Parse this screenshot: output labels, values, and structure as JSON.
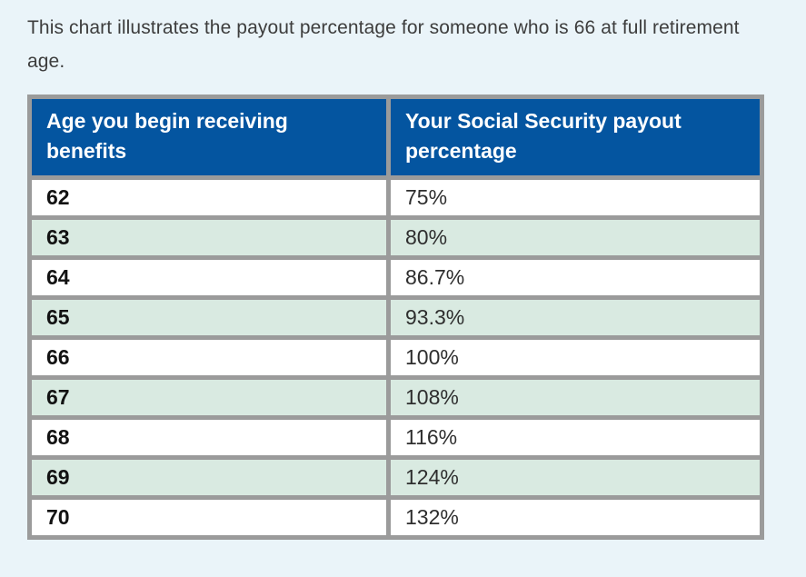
{
  "intro": "This chart illustrates the payout percentage for someone who is 66 at full retirement age.",
  "table": {
    "columns": [
      "Age you begin receiving benefits",
      "Your Social Security payout percentage"
    ],
    "rows": [
      {
        "age": "62",
        "payout": "75%"
      },
      {
        "age": "63",
        "payout": "80%"
      },
      {
        "age": "64",
        "payout": "86.7%"
      },
      {
        "age": "65",
        "payout": "93.3%"
      },
      {
        "age": "66",
        "payout": "100%"
      },
      {
        "age": "67",
        "payout": "108%"
      },
      {
        "age": "68",
        "payout": "116%"
      },
      {
        "age": "69",
        "payout": "124%"
      },
      {
        "age": "70",
        "payout": "132%"
      }
    ]
  },
  "colors": {
    "page_bg": "#eaf4f9",
    "header_bg": "#0455a0",
    "header_text": "#ffffff",
    "border": "#9b9b9b",
    "row_alt_bg": "#d9eae1",
    "row_bg": "#ffffff",
    "text": "#3d3d3d"
  },
  "chart_data": {
    "type": "table",
    "title": "This chart illustrates the payout percentage for someone who is 66 at full retirement age.",
    "columns": [
      "Age you begin receiving benefits",
      "Your Social Security payout percentage"
    ],
    "categories": [
      62,
      63,
      64,
      65,
      66,
      67,
      68,
      69,
      70
    ],
    "values": [
      75,
      80,
      86.7,
      93.3,
      100,
      108,
      116,
      124,
      132
    ],
    "value_labels": [
      "75%",
      "80%",
      "86.7%",
      "93.3%",
      "100%",
      "108%",
      "116%",
      "124%",
      "132%"
    ],
    "full_retirement_age": 66,
    "layout_hints": {
      "header_style": "dark-blue, white bold text",
      "row_striping": "white / light mint green alternating starting white",
      "grid": "on, thick gray borders"
    }
  }
}
